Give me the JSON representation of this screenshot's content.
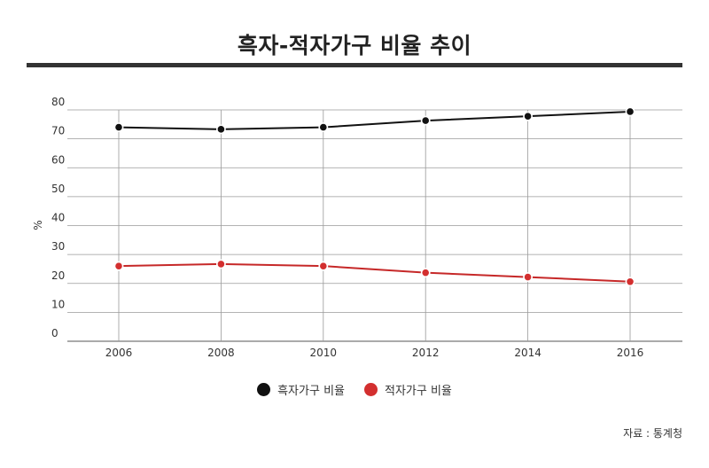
{
  "title": "흑자-적자가구 비율 추이",
  "source": "자료 : 통계청",
  "colors": {
    "series_black": "#111111",
    "series_red": "#c62828",
    "grid": "#999999"
  },
  "chart_data": {
    "type": "line",
    "title": "흑자-적자가구 비율 추이",
    "xlabel": "",
    "ylabel": "%",
    "x": [
      "2006",
      "2008",
      "2010",
      "2012",
      "2014",
      "2016"
    ],
    "ylim": [
      0,
      80
    ],
    "yticks": [
      "0",
      "10",
      "20",
      "30",
      "40",
      "50",
      "60",
      "70",
      "80"
    ],
    "grid": true,
    "legend": "bottom",
    "series": [
      {
        "name": "흑자가구 비율",
        "color": "#111111",
        "values": [
          74,
          73.3,
          74,
          76.3,
          77.8,
          79.4
        ]
      },
      {
        "name": "적자가구 비율",
        "color": "#c62828",
        "values": [
          26,
          26.7,
          26,
          23.7,
          22.2,
          20.6
        ]
      }
    ]
  }
}
